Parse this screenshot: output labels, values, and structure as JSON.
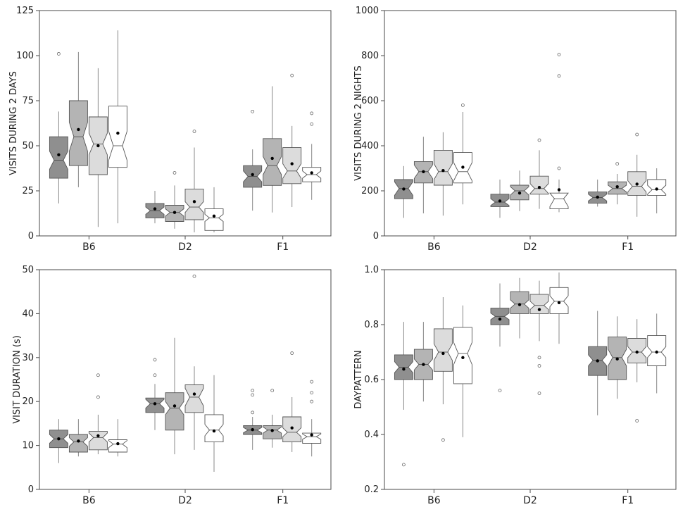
{
  "fill_colors": [
    "#8f8f8f",
    "#b4b4b4",
    "#dcdcdc",
    "#ffffff"
  ],
  "chart_data": [
    {
      "type": "box",
      "title": "",
      "xlabel": "",
      "ylabel": "VISITS DURING 2 DAYS",
      "ylim": [
        0,
        125
      ],
      "yticks": [
        0,
        25,
        50,
        75,
        100,
        125
      ],
      "categories": [
        "B6",
        "D2",
        "F1"
      ],
      "boxes": [
        [
          {
            "lw": 18,
            "q1": 32,
            "med": 42,
            "q3": 55,
            "uw": 69,
            "mean": 45,
            "notch": 5,
            "outliers": [
              101
            ]
          },
          {
            "lw": 27,
            "q1": 39,
            "med": 55,
            "q3": 75,
            "uw": 102,
            "mean": 59,
            "notch": 8,
            "outliers": []
          },
          {
            "lw": 5,
            "q1": 34,
            "med": 51,
            "q3": 66,
            "uw": 93,
            "mean": 50,
            "notch": 6,
            "outliers": []
          },
          {
            "lw": 7,
            "q1": 38,
            "med": 50,
            "q3": 72,
            "uw": 114,
            "mean": 57,
            "notch": 8,
            "outliers": []
          }
        ],
        [
          {
            "lw": 7,
            "q1": 10,
            "med": 14,
            "q3": 18,
            "uw": 25,
            "mean": 15,
            "notch": 2,
            "outliers": []
          },
          {
            "lw": 4,
            "q1": 8,
            "med": 13,
            "q3": 17,
            "uw": 28,
            "mean": 13,
            "notch": 2,
            "outliers": [
              35
            ]
          },
          {
            "lw": 2,
            "q1": 9,
            "med": 16,
            "q3": 26,
            "uw": 49,
            "mean": 19,
            "notch": 3,
            "outliers": [
              58
            ]
          },
          {
            "lw": 2,
            "q1": 3,
            "med": 10,
            "q3": 15,
            "uw": 27,
            "mean": 11,
            "notch": 2,
            "outliers": []
          }
        ],
        [
          {
            "lw": 14,
            "q1": 27,
            "med": 33,
            "q3": 39,
            "uw": 48,
            "mean": 34,
            "notch": 3,
            "outliers": [
              69
            ]
          },
          {
            "lw": 13,
            "q1": 28,
            "med": 39,
            "q3": 54,
            "uw": 83,
            "mean": 43,
            "notch": 5,
            "outliers": []
          },
          {
            "lw": 16,
            "q1": 29,
            "med": 36,
            "q3": 49,
            "uw": 61,
            "mean": 40,
            "notch": 4,
            "outliers": [
              89
            ]
          },
          {
            "lw": 20,
            "q1": 30,
            "med": 34,
            "q3": 38,
            "uw": 51,
            "mean": 35,
            "notch": 2,
            "outliers": [
              62,
              68
            ]
          }
        ]
      ]
    },
    {
      "type": "box",
      "title": "",
      "xlabel": "",
      "ylabel": "VISITS DURING 2 NIGHTS",
      "ylim": [
        0,
        1000
      ],
      "yticks": [
        0,
        200,
        400,
        600,
        800,
        1000
      ],
      "categories": [
        "B6",
        "D2",
        "F1"
      ],
      "boxes": [
        [
          {
            "lw": 80,
            "q1": 165,
            "med": 210,
            "q3": 250,
            "uw": 310,
            "mean": 208,
            "notch": 30,
            "outliers": []
          },
          {
            "lw": 100,
            "q1": 235,
            "med": 285,
            "q3": 330,
            "uw": 440,
            "mean": 285,
            "notch": 30,
            "outliers": []
          },
          {
            "lw": 90,
            "q1": 225,
            "med": 285,
            "q3": 380,
            "uw": 460,
            "mean": 290,
            "notch": 35,
            "outliers": []
          },
          {
            "lw": 140,
            "q1": 235,
            "med": 285,
            "q3": 370,
            "uw": 550,
            "mean": 305,
            "notch": 40,
            "outliers": [
              580
            ]
          }
        ],
        [
          {
            "lw": 80,
            "q1": 130,
            "med": 150,
            "q3": 185,
            "uw": 250,
            "mean": 155,
            "notch": 15,
            "outliers": []
          },
          {
            "lw": 110,
            "q1": 160,
            "med": 200,
            "q3": 225,
            "uw": 290,
            "mean": 190,
            "notch": 18,
            "outliers": []
          },
          {
            "lw": 120,
            "q1": 185,
            "med": 210,
            "q3": 265,
            "uw": 380,
            "mean": 215,
            "notch": 22,
            "outliers": [
              425
            ]
          },
          {
            "lw": 105,
            "q1": 120,
            "med": 165,
            "q3": 190,
            "uw": 250,
            "mean": 205,
            "notch": 35,
            "outliers": [
              300,
              710,
              805
            ]
          }
        ],
        [
          {
            "lw": 130,
            "q1": 145,
            "med": 170,
            "q3": 195,
            "uw": 250,
            "mean": 172,
            "notch": 15,
            "outliers": []
          },
          {
            "lw": 140,
            "q1": 185,
            "med": 210,
            "q3": 240,
            "uw": 275,
            "mean": 218,
            "notch": 15,
            "outliers": [
              320
            ]
          },
          {
            "lw": 85,
            "q1": 180,
            "med": 220,
            "q3": 285,
            "uw": 360,
            "mean": 230,
            "notch": 25,
            "outliers": [
              450
            ]
          },
          {
            "lw": 100,
            "q1": 180,
            "med": 205,
            "q3": 250,
            "uw": 300,
            "mean": 208,
            "notch": 20,
            "outliers": []
          }
        ]
      ]
    },
    {
      "type": "box",
      "title": "",
      "xlabel": "",
      "ylabel": "VISIT DURATION (s)",
      "ylim": [
        0,
        50
      ],
      "yticks": [
        0,
        10,
        20,
        30,
        40,
        50
      ],
      "categories": [
        "B6",
        "D2",
        "F1"
      ],
      "boxes": [
        [
          {
            "lw": 6,
            "q1": 9.5,
            "med": 11.5,
            "q3": 13.5,
            "uw": 16,
            "mean": 11.5,
            "notch": 1,
            "outliers": []
          },
          {
            "lw": 7.5,
            "q1": 8.5,
            "med": 10.8,
            "q3": 12.5,
            "uw": 16,
            "mean": 11,
            "notch": 1,
            "outliers": []
          },
          {
            "lw": 8,
            "q1": 9,
            "med": 11.8,
            "q3": 13.2,
            "uw": 17,
            "mean": 12.2,
            "notch": 1,
            "outliers": [
              21,
              26
            ]
          },
          {
            "lw": 7.5,
            "q1": 8.5,
            "med": 10.3,
            "q3": 11.3,
            "uw": 16,
            "mean": 10.4,
            "notch": 0.8,
            "outliers": []
          }
        ],
        [
          {
            "lw": 13.5,
            "q1": 17.5,
            "med": 19.5,
            "q3": 20.8,
            "uw": 24,
            "mean": 19.5,
            "notch": 1,
            "outliers": [
              26,
              29.5
            ]
          },
          {
            "lw": 8,
            "q1": 13.5,
            "med": 18.5,
            "q3": 22,
            "uw": 34.5,
            "mean": 19,
            "notch": 1.5,
            "outliers": []
          },
          {
            "lw": 9,
            "q1": 17.5,
            "med": 21,
            "q3": 23.8,
            "uw": 28,
            "mean": 21.7,
            "notch": 2,
            "outliers": [
              48.5
            ]
          },
          {
            "lw": 4,
            "q1": 10.8,
            "med": 13.5,
            "q3": 17,
            "uw": 26,
            "mean": 13.3,
            "notch": 1.3,
            "outliers": []
          }
        ],
        [
          {
            "lw": 9,
            "q1": 12.5,
            "med": 13.5,
            "q3": 14.5,
            "uw": 16.5,
            "mean": 13.6,
            "notch": 0.6,
            "outliers": [
              17.5,
              21.5,
              22.5
            ]
          },
          {
            "lw": 9.5,
            "q1": 11.5,
            "med": 13.5,
            "q3": 14.5,
            "uw": 17,
            "mean": 13.4,
            "notch": 0.7,
            "outliers": [
              22.5
            ]
          },
          {
            "lw": 8.5,
            "q1": 10.8,
            "med": 13,
            "q3": 16.5,
            "uw": 21,
            "mean": 14,
            "notch": 1,
            "outliers": [
              31
            ]
          },
          {
            "lw": 7.5,
            "q1": 10.5,
            "med": 12,
            "q3": 12.8,
            "uw": 16,
            "mean": 12.4,
            "notch": 0.6,
            "outliers": [
              20,
              22,
              24.5
            ]
          }
        ]
      ]
    },
    {
      "type": "box",
      "title": "",
      "xlabel": "",
      "ylabel": "DAYPATTERN",
      "ylim": [
        0.2,
        1.0
      ],
      "yticks": [
        0.2,
        0.4,
        0.6,
        0.8,
        1.0
      ],
      "categories": [
        "B6",
        "D2",
        "F1"
      ],
      "boxes": [
        [
          {
            "lw": 0.49,
            "q1": 0.6,
            "med": 0.645,
            "q3": 0.69,
            "uw": 0.81,
            "mean": 0.638,
            "notch": 0.02,
            "outliers": [
              0.29
            ]
          },
          {
            "lw": 0.52,
            "q1": 0.6,
            "med": 0.655,
            "q3": 0.71,
            "uw": 0.81,
            "mean": 0.655,
            "notch": 0.02,
            "outliers": []
          },
          {
            "lw": 0.51,
            "q1": 0.63,
            "med": 0.7,
            "q3": 0.785,
            "uw": 0.9,
            "mean": 0.695,
            "notch": 0.03,
            "outliers": [
              0.38
            ]
          },
          {
            "lw": 0.39,
            "q1": 0.585,
            "med": 0.695,
            "q3": 0.79,
            "uw": 0.87,
            "mean": 0.68,
            "notch": 0.04,
            "outliers": []
          }
        ],
        [
          {
            "lw": 0.72,
            "q1": 0.8,
            "med": 0.83,
            "q3": 0.86,
            "uw": 0.95,
            "mean": 0.82,
            "notch": 0.012,
            "outliers": [
              0.56
            ]
          },
          {
            "lw": 0.75,
            "q1": 0.84,
            "med": 0.875,
            "q3": 0.92,
            "uw": 0.97,
            "mean": 0.873,
            "notch": 0.015,
            "outliers": []
          },
          {
            "lw": 0.74,
            "q1": 0.84,
            "med": 0.87,
            "q3": 0.91,
            "uw": 0.96,
            "mean": 0.855,
            "notch": 0.015,
            "outliers": [
              0.55,
              0.65,
              0.68
            ]
          },
          {
            "lw": 0.73,
            "q1": 0.84,
            "med": 0.885,
            "q3": 0.935,
            "uw": 0.99,
            "mean": 0.88,
            "notch": 0.02,
            "outliers": []
          }
        ],
        [
          {
            "lw": 0.47,
            "q1": 0.615,
            "med": 0.67,
            "q3": 0.72,
            "uw": 0.85,
            "mean": 0.668,
            "notch": 0.02,
            "outliers": []
          },
          {
            "lw": 0.53,
            "q1": 0.6,
            "med": 0.68,
            "q3": 0.755,
            "uw": 0.83,
            "mean": 0.675,
            "notch": 0.03,
            "outliers": []
          },
          {
            "lw": 0.59,
            "q1": 0.66,
            "med": 0.7,
            "q3": 0.75,
            "uw": 0.82,
            "mean": 0.7,
            "notch": 0.02,
            "outliers": [
              0.45
            ]
          },
          {
            "lw": 0.55,
            "q1": 0.65,
            "med": 0.7,
            "q3": 0.76,
            "uw": 0.84,
            "mean": 0.7,
            "notch": 0.02,
            "outliers": []
          }
        ]
      ]
    }
  ]
}
